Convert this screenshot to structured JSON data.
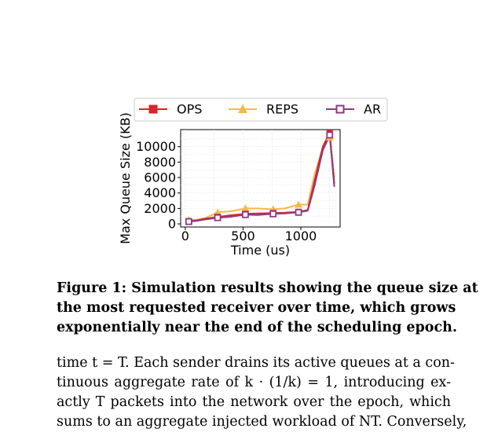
{
  "chart_data": {
    "type": "line",
    "xlabel": "Time (us)",
    "ylabel": "Max Queue Size (KB)",
    "xlim": [
      -40,
      1340
    ],
    "ylim": [
      -400,
      12200
    ],
    "x_ticks": [
      0,
      500,
      1000
    ],
    "x_tick_labels": [
      "0",
      "500",
      "1000"
    ],
    "y_ticks": [
      0,
      2000,
      4000,
      6000,
      8000,
      10000
    ],
    "y_tick_labels": [
      "0",
      "2000",
      "4000",
      "6000",
      "8000",
      "10000"
    ],
    "grid": true,
    "legend_position": "top",
    "series": [
      {
        "name": "OPS",
        "color": "#d62728",
        "marker": "square",
        "x": [
          30,
          100,
          180,
          280,
          380,
          520,
          620,
          760,
          860,
          980,
          1060,
          1120,
          1190,
          1250,
          1290
        ],
        "y": [
          350,
          450,
          700,
          900,
          1100,
          1300,
          1350,
          1400,
          1450,
          1550,
          1800,
          5600,
          10000,
          11800,
          5200
        ]
      },
      {
        "name": "REPS",
        "color": "#f7b84b",
        "marker": "triangle",
        "x": [
          30,
          100,
          180,
          280,
          380,
          520,
          620,
          760,
          860,
          980,
          1060,
          1120,
          1190,
          1250,
          1290
        ],
        "y": [
          500,
          550,
          800,
          1500,
          1600,
          2000,
          2000,
          1900,
          2000,
          2500,
          2500,
          6500,
          9800,
          11200,
          6000
        ]
      },
      {
        "name": "AR",
        "color": "#8e3a80",
        "marker": "open-square",
        "x": [
          30,
          100,
          180,
          280,
          380,
          520,
          620,
          760,
          860,
          980,
          1060,
          1120,
          1190,
          1250,
          1290
        ],
        "y": [
          300,
          400,
          600,
          800,
          900,
          1200,
          1150,
          1300,
          1350,
          1500,
          1700,
          5000,
          9500,
          11500,
          4800
        ]
      }
    ]
  },
  "caption": {
    "lines": [
      "Figure 1: Simulation results showing the queue size at",
      "the most requested receiver over time, which grows",
      "exponentially near the end of the scheduling epoch."
    ]
  },
  "body": {
    "lines": [
      "time t = T. Each sender drains its active queues at a con-",
      "tinuous aggregate rate of k · (1/k) = 1, introducing ex-",
      "actly T packets into the network over the epoch, which",
      "sums to an aggregate injected workload of NT. Conversely,"
    ]
  }
}
